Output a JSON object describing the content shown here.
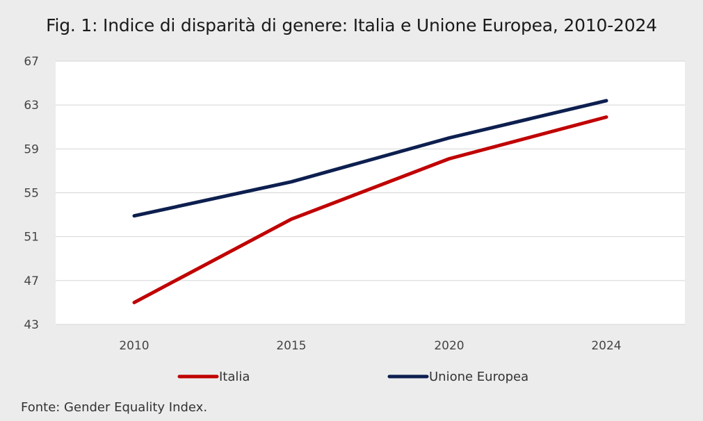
{
  "page": {
    "title": "Fig. 1: Indice di disparità di genere: Italia e Unione Europea, 2010-2024",
    "source": "Fonte: Gender Equality Index."
  },
  "chart_data": {
    "type": "line",
    "title": "Fig. 1: Indice di disparità di genere: Italia e Unione Europea, 2010-2024",
    "xlabel": "",
    "ylabel": "",
    "categories": [
      "2010",
      "2015",
      "2020",
      "2024"
    ],
    "x_ticks": [
      "2010",
      "2015",
      "2020",
      "2024"
    ],
    "y_ticks": [
      "67",
      "63",
      "59",
      "55",
      "51",
      "47",
      "43"
    ],
    "ylim": [
      43,
      67
    ],
    "grid": true,
    "legend_position": "bottom",
    "series": [
      {
        "name": "Italia",
        "color": "#c00000",
        "values": [
          45.0,
          52.6,
          58.1,
          61.9
        ]
      },
      {
        "name": "Unione Europea",
        "color": "#0d1f4f",
        "values": [
          52.9,
          56.0,
          60.0,
          63.4
        ]
      }
    ]
  }
}
